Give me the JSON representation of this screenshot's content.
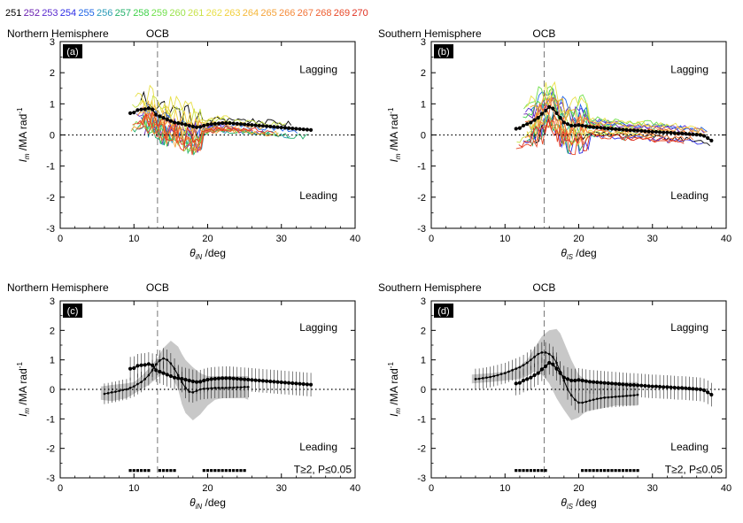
{
  "legend_days": [
    {
      "label": "251",
      "color": "#000000"
    },
    {
      "label": "252",
      "color": "#6a1fb0"
    },
    {
      "label": "253",
      "color": "#5b2bd0"
    },
    {
      "label": "254",
      "color": "#2d2de6"
    },
    {
      "label": "255",
      "color": "#1e64e6"
    },
    {
      "label": "256",
      "color": "#2a9bb8"
    },
    {
      "label": "257",
      "color": "#22b06a"
    },
    {
      "label": "258",
      "color": "#3fd24a"
    },
    {
      "label": "259",
      "color": "#6fe04a"
    },
    {
      "label": "260",
      "color": "#9be24a"
    },
    {
      "label": "261",
      "color": "#c8e24a"
    },
    {
      "label": "262",
      "color": "#e8e04a"
    },
    {
      "label": "263",
      "color": "#f2cf3a"
    },
    {
      "label": "264",
      "color": "#f5b83a"
    },
    {
      "label": "265",
      "color": "#f5a33a"
    },
    {
      "label": "266",
      "color": "#f58c3a"
    },
    {
      "label": "267",
      "color": "#f2753a"
    },
    {
      "label": "268",
      "color": "#ee5e30"
    },
    {
      "label": "269",
      "color": "#e84828"
    },
    {
      "label": "270",
      "color": "#e03020"
    }
  ],
  "chart_data": [
    {
      "panel": "(a)",
      "type": "line",
      "hemisphere": "Northern Hemisphere",
      "ocb_label": "OCB",
      "ocb_x": 13.2,
      "xlabel_sym": "θ",
      "xlabel_sub": "iN",
      "xlabel_unit": " /deg",
      "ylabel_sym": "I",
      "ylabel_sub": "m",
      "ylabel_unit": " /MA rad",
      "ylabel_sup": "-1",
      "xlim": [
        0,
        40
      ],
      "ylim": [
        -3,
        3
      ],
      "xticks": [
        0,
        10,
        20,
        30,
        40
      ],
      "yticks": [
        -3,
        -2,
        -1,
        0,
        1,
        2,
        3
      ],
      "lagging_label": "Lagging",
      "leading_label": "Leading",
      "zero_line": "dotted",
      "mean_x": [
        9.5,
        10,
        10.5,
        11,
        11.5,
        12,
        12.5,
        13,
        13.5,
        14,
        14.5,
        15,
        15.5,
        16,
        16.5,
        17,
        17.5,
        18,
        18.5,
        19,
        19.5,
        20,
        20.5,
        21,
        21.5,
        22,
        22.5,
        23,
        23.5,
        24,
        24.5,
        25,
        25.5,
        26,
        26.5,
        27,
        27.5,
        28,
        28.5,
        29,
        29.5,
        30,
        30.5,
        31,
        31.5,
        32,
        32.5,
        33,
        33.5,
        34
      ],
      "mean_y": [
        0.7,
        0.72,
        0.8,
        0.82,
        0.83,
        0.86,
        0.82,
        0.65,
        0.6,
        0.55,
        0.5,
        0.45,
        0.4,
        0.38,
        0.36,
        0.33,
        0.3,
        0.27,
        0.25,
        0.26,
        0.3,
        0.33,
        0.35,
        0.36,
        0.37,
        0.38,
        0.38,
        0.38,
        0.37,
        0.36,
        0.35,
        0.34,
        0.33,
        0.32,
        0.31,
        0.3,
        0.29,
        0.28,
        0.27,
        0.26,
        0.25,
        0.24,
        0.23,
        0.22,
        0.21,
        0.2,
        0.19,
        0.18,
        0.17,
        0.16
      ],
      "band": null,
      "significance": null
    },
    {
      "panel": "(b)",
      "type": "line",
      "hemisphere": "Southern Hemisphere",
      "ocb_label": "OCB",
      "ocb_x": 15.3,
      "xlabel_sym": "θ",
      "xlabel_sub": "iS",
      "xlabel_unit": " /deg",
      "ylabel_sym": "I",
      "ylabel_sub": "m",
      "ylabel_unit": " /MA rad",
      "ylabel_sup": "-1",
      "xlim": [
        0,
        40
      ],
      "ylim": [
        -3,
        3
      ],
      "xticks": [
        0,
        10,
        20,
        30,
        40
      ],
      "yticks": [
        -3,
        -2,
        -1,
        0,
        1,
        2,
        3
      ],
      "lagging_label": "Lagging",
      "leading_label": "Leading",
      "zero_line": "dotted",
      "mean_x": [
        11.5,
        12,
        12.5,
        13,
        13.5,
        14,
        14.5,
        15,
        15.5,
        16,
        16.5,
        17,
        17.5,
        18,
        18.5,
        19,
        19.5,
        20,
        20.5,
        21,
        21.5,
        22,
        22.5,
        23,
        23.5,
        24,
        24.5,
        25,
        25.5,
        26,
        26.5,
        27,
        27.5,
        28,
        28.5,
        29,
        29.5,
        30,
        30.5,
        31,
        31.5,
        32,
        32.5,
        33,
        33.5,
        34,
        34.5,
        35,
        35.5,
        36,
        36.5,
        37,
        37.5,
        38
      ],
      "mean_y": [
        0.2,
        0.22,
        0.3,
        0.35,
        0.4,
        0.48,
        0.55,
        0.68,
        0.78,
        0.9,
        0.85,
        0.7,
        0.55,
        0.4,
        0.35,
        0.3,
        0.3,
        0.32,
        0.3,
        0.28,
        0.26,
        0.25,
        0.24,
        0.23,
        0.22,
        0.21,
        0.2,
        0.19,
        0.18,
        0.17,
        0.16,
        0.15,
        0.15,
        0.14,
        0.13,
        0.12,
        0.11,
        0.1,
        0.1,
        0.09,
        0.08,
        0.08,
        0.07,
        0.06,
        0.05,
        0.05,
        0.04,
        0.03,
        0.02,
        0.01,
        0.0,
        -0.03,
        -0.1,
        -0.18
      ],
      "band": null,
      "significance": null
    },
    {
      "panel": "(c)",
      "type": "line",
      "hemisphere": "Northern Hemisphere",
      "ocb_label": "OCB",
      "ocb_x": 13.2,
      "xlabel_sym": "θ",
      "xlabel_sub": "iN",
      "xlabel_unit": " /deg",
      "ylabel_sym": "I",
      "ylabel_sub": "m",
      "ylabel_unit": " /MA rad",
      "ylabel_sup": "-1",
      "xlim": [
        0,
        40
      ],
      "ylim": [
        -3,
        3
      ],
      "xticks": [
        0,
        10,
        20,
        30,
        40
      ],
      "yticks": [
        -3,
        -2,
        -1,
        0,
        1,
        2,
        3
      ],
      "lagging_label": "Lagging",
      "leading_label": "Leading",
      "significance_label": "T≥2, P≤0.05",
      "zero_line": "dotted",
      "mean_x": [
        9.5,
        10,
        10.5,
        11,
        11.5,
        12,
        12.5,
        13,
        13.5,
        14,
        14.5,
        15,
        15.5,
        16,
        16.5,
        17,
        17.5,
        18,
        18.5,
        19,
        19.5,
        20,
        20.5,
        21,
        21.5,
        22,
        22.5,
        23,
        23.5,
        24,
        24.5,
        25,
        25.5,
        26,
        26.5,
        27,
        27.5,
        28,
        28.5,
        29,
        29.5,
        30,
        30.5,
        31,
        31.5,
        32,
        32.5,
        33,
        33.5,
        34
      ],
      "mean_y": [
        0.7,
        0.72,
        0.8,
        0.82,
        0.83,
        0.86,
        0.82,
        0.65,
        0.6,
        0.55,
        0.5,
        0.45,
        0.4,
        0.38,
        0.36,
        0.33,
        0.3,
        0.27,
        0.25,
        0.26,
        0.3,
        0.33,
        0.35,
        0.36,
        0.37,
        0.38,
        0.38,
        0.38,
        0.37,
        0.36,
        0.35,
        0.34,
        0.33,
        0.32,
        0.31,
        0.3,
        0.29,
        0.28,
        0.27,
        0.26,
        0.25,
        0.24,
        0.23,
        0.22,
        0.21,
        0.2,
        0.19,
        0.18,
        0.17,
        0.16
      ],
      "mean_err": 0.4,
      "shifted_x": [
        6,
        6.5,
        7,
        7.5,
        8,
        8.5,
        9,
        9.5,
        10,
        10.5,
        11,
        11.5,
        12,
        12.5,
        13,
        13.5,
        14,
        14.5,
        15,
        15.5,
        16,
        16.5,
        17,
        17.5,
        18,
        18.5,
        19,
        19.5,
        20,
        20.5,
        21,
        21.5,
        22,
        22.5,
        23,
        23.5,
        24,
        24.5,
        25,
        25.5
      ],
      "shifted_y": [
        -0.15,
        -0.13,
        -0.1,
        -0.08,
        -0.05,
        -0.02,
        0.0,
        0.05,
        0.1,
        0.18,
        0.25,
        0.35,
        0.48,
        0.65,
        0.85,
        0.98,
        1.05,
        1.0,
        0.88,
        0.7,
        0.48,
        0.25,
        0.05,
        -0.08,
        -0.1,
        -0.05,
        0.0,
        0.02,
        0.03,
        0.04,
        0.05,
        0.05,
        0.05,
        0.05,
        0.06,
        0.06,
        0.07,
        0.07,
        0.08,
        0.08
      ],
      "band": {
        "x": [
          5.5,
          7,
          9,
          10,
          11,
          12,
          13,
          14,
          15,
          16,
          16.5,
          17,
          18,
          19,
          20,
          21,
          22,
          23,
          24,
          25,
          25.5
        ],
        "upper": [
          0.1,
          0.15,
          0.2,
          0.25,
          0.45,
          0.7,
          1.0,
          1.4,
          1.65,
          1.45,
          1.2,
          1.0,
          0.75,
          0.55,
          0.45,
          0.45,
          0.45,
          0.45,
          0.45,
          0.45,
          0.45
        ],
        "lower": [
          -0.35,
          -0.4,
          -0.3,
          -0.15,
          0.0,
          0.15,
          0.35,
          0.55,
          0.5,
          0.0,
          -0.5,
          -0.8,
          -1.05,
          -0.85,
          -0.55,
          -0.35,
          -0.3,
          -0.3,
          -0.3,
          -0.3,
          -0.35
        ]
      },
      "significance": {
        "y": -2.75,
        "x": [
          9.5,
          10,
          10.5,
          11,
          11.5,
          12,
          13.5,
          14,
          14.5,
          15,
          15.5,
          19.5,
          20,
          20.5,
          21,
          21.5,
          22,
          22.5,
          23,
          23.5,
          24,
          24.5,
          25
        ]
      }
    },
    {
      "panel": "(d)",
      "type": "line",
      "hemisphere": "Southern Hemisphere",
      "ocb_label": "OCB",
      "ocb_x": 15.3,
      "xlabel_sym": "θ",
      "xlabel_sub": "iS",
      "xlabel_unit": " /deg",
      "ylabel_sym": "I",
      "ylabel_sub": "m",
      "ylabel_unit": " /MA rad",
      "ylabel_sup": "-1",
      "xlim": [
        0,
        40
      ],
      "ylim": [
        -3,
        3
      ],
      "xticks": [
        0,
        10,
        20,
        30,
        40
      ],
      "yticks": [
        -3,
        -2,
        -1,
        0,
        1,
        2,
        3
      ],
      "lagging_label": "Lagging",
      "leading_label": "Leading",
      "significance_label": "T≥2, P≤0.05",
      "zero_line": "dotted",
      "mean_x": [
        11.5,
        12,
        12.5,
        13,
        13.5,
        14,
        14.5,
        15,
        15.5,
        16,
        16.5,
        17,
        17.5,
        18,
        18.5,
        19,
        19.5,
        20,
        20.5,
        21,
        21.5,
        22,
        22.5,
        23,
        23.5,
        24,
        24.5,
        25,
        25.5,
        26,
        26.5,
        27,
        27.5,
        28,
        28.5,
        29,
        29.5,
        30,
        30.5,
        31,
        31.5,
        32,
        32.5,
        33,
        33.5,
        34,
        34.5,
        35,
        35.5,
        36,
        36.5,
        37,
        37.5,
        38
      ],
      "mean_y": [
        0.2,
        0.22,
        0.3,
        0.35,
        0.4,
        0.48,
        0.55,
        0.68,
        0.78,
        0.9,
        0.85,
        0.7,
        0.55,
        0.4,
        0.35,
        0.3,
        0.3,
        0.32,
        0.3,
        0.28,
        0.26,
        0.25,
        0.24,
        0.23,
        0.22,
        0.21,
        0.2,
        0.19,
        0.18,
        0.17,
        0.16,
        0.15,
        0.15,
        0.14,
        0.13,
        0.12,
        0.11,
        0.1,
        0.1,
        0.09,
        0.08,
        0.08,
        0.07,
        0.06,
        0.05,
        0.05,
        0.04,
        0.03,
        0.02,
        0.01,
        0.0,
        -0.03,
        -0.1,
        -0.18
      ],
      "mean_err": 0.4,
      "shifted_x": [
        6,
        6.5,
        7,
        7.5,
        8,
        8.5,
        9,
        9.5,
        10,
        10.5,
        11,
        11.5,
        12,
        12.5,
        13,
        13.5,
        14,
        14.5,
        15,
        15.5,
        16,
        16.5,
        17,
        17.5,
        18,
        18.5,
        19,
        19.5,
        20,
        20.5,
        21,
        21.5,
        22,
        22.5,
        23,
        23.5,
        24,
        24.5,
        25,
        25.5,
        26,
        26.5,
        27,
        27.5,
        28
      ],
      "shifted_y": [
        0.35,
        0.36,
        0.38,
        0.4,
        0.42,
        0.45,
        0.48,
        0.52,
        0.55,
        0.6,
        0.65,
        0.7,
        0.75,
        0.82,
        0.9,
        1.0,
        1.1,
        1.2,
        1.25,
        1.25,
        1.2,
        1.1,
        0.9,
        0.6,
        0.3,
        0.0,
        -0.2,
        -0.35,
        -0.45,
        -0.45,
        -0.42,
        -0.38,
        -0.35,
        -0.32,
        -0.3,
        -0.28,
        -0.27,
        -0.26,
        -0.25,
        -0.24,
        -0.23,
        -0.22,
        -0.21,
        -0.2,
        -0.18
      ],
      "band": {
        "x": [
          5.5,
          8,
          10,
          12,
          13,
          14,
          15,
          16,
          17,
          17.5,
          18,
          19,
          20,
          21,
          22,
          23,
          24,
          25,
          26,
          27,
          28
        ],
        "upper": [
          0.5,
          0.55,
          0.6,
          0.8,
          1.0,
          1.4,
          1.8,
          2.0,
          2.05,
          1.9,
          1.6,
          1.0,
          0.5,
          0.3,
          0.25,
          0.25,
          0.25,
          0.25,
          0.25,
          0.25,
          0.25
        ],
        "lower": [
          0.2,
          0.25,
          0.3,
          0.35,
          0.45,
          0.6,
          0.5,
          0.2,
          -0.3,
          -0.5,
          -0.7,
          -1.05,
          -0.95,
          -0.75,
          -0.7,
          -0.65,
          -0.6,
          -0.55,
          -0.55,
          -0.55,
          -0.55
        ]
      },
      "significance": {
        "y": -2.75,
        "x": [
          11.5,
          12,
          12.5,
          13,
          13.5,
          14,
          14.5,
          15,
          15.5,
          20.5,
          21,
          21.5,
          22,
          22.5,
          23,
          23.5,
          24,
          24.5,
          25,
          25.5,
          26,
          26.5,
          27,
          27.5,
          28
        ]
      }
    }
  ]
}
